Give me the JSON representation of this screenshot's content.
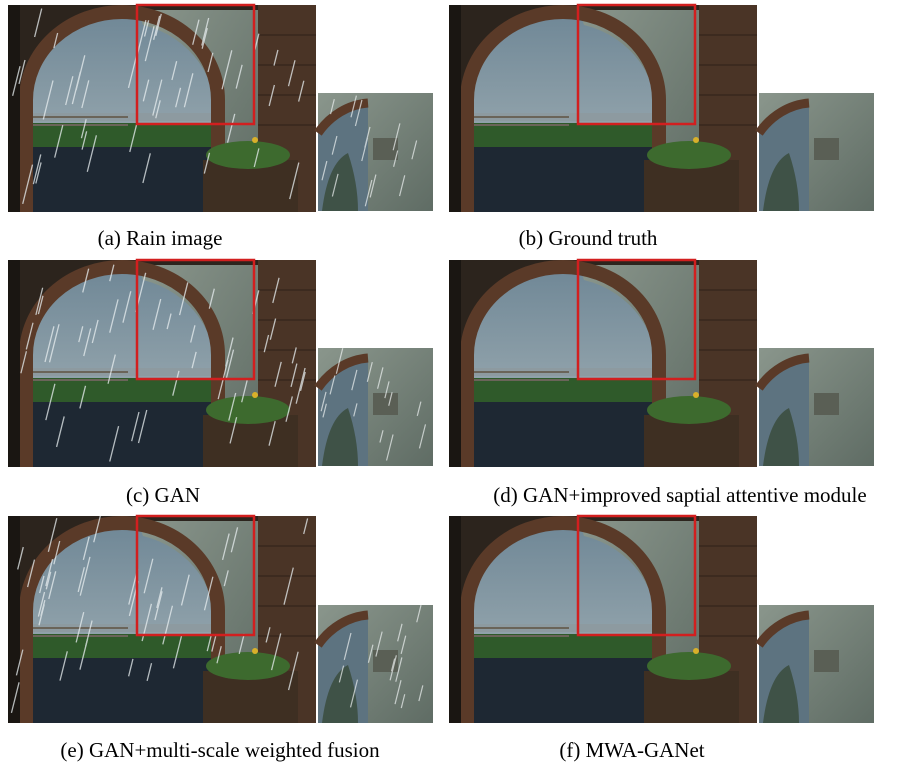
{
  "panels": [
    {
      "caption": "(a) Rain image"
    },
    {
      "caption": "(b) Ground truth"
    },
    {
      "caption": "(c) GAN"
    },
    {
      "caption": "(d) GAN+improved saptial attentive module"
    },
    {
      "caption": "(e) GAN+multi-scale weighted fusion"
    },
    {
      "caption": "(f) MWA-GANet"
    }
  ]
}
